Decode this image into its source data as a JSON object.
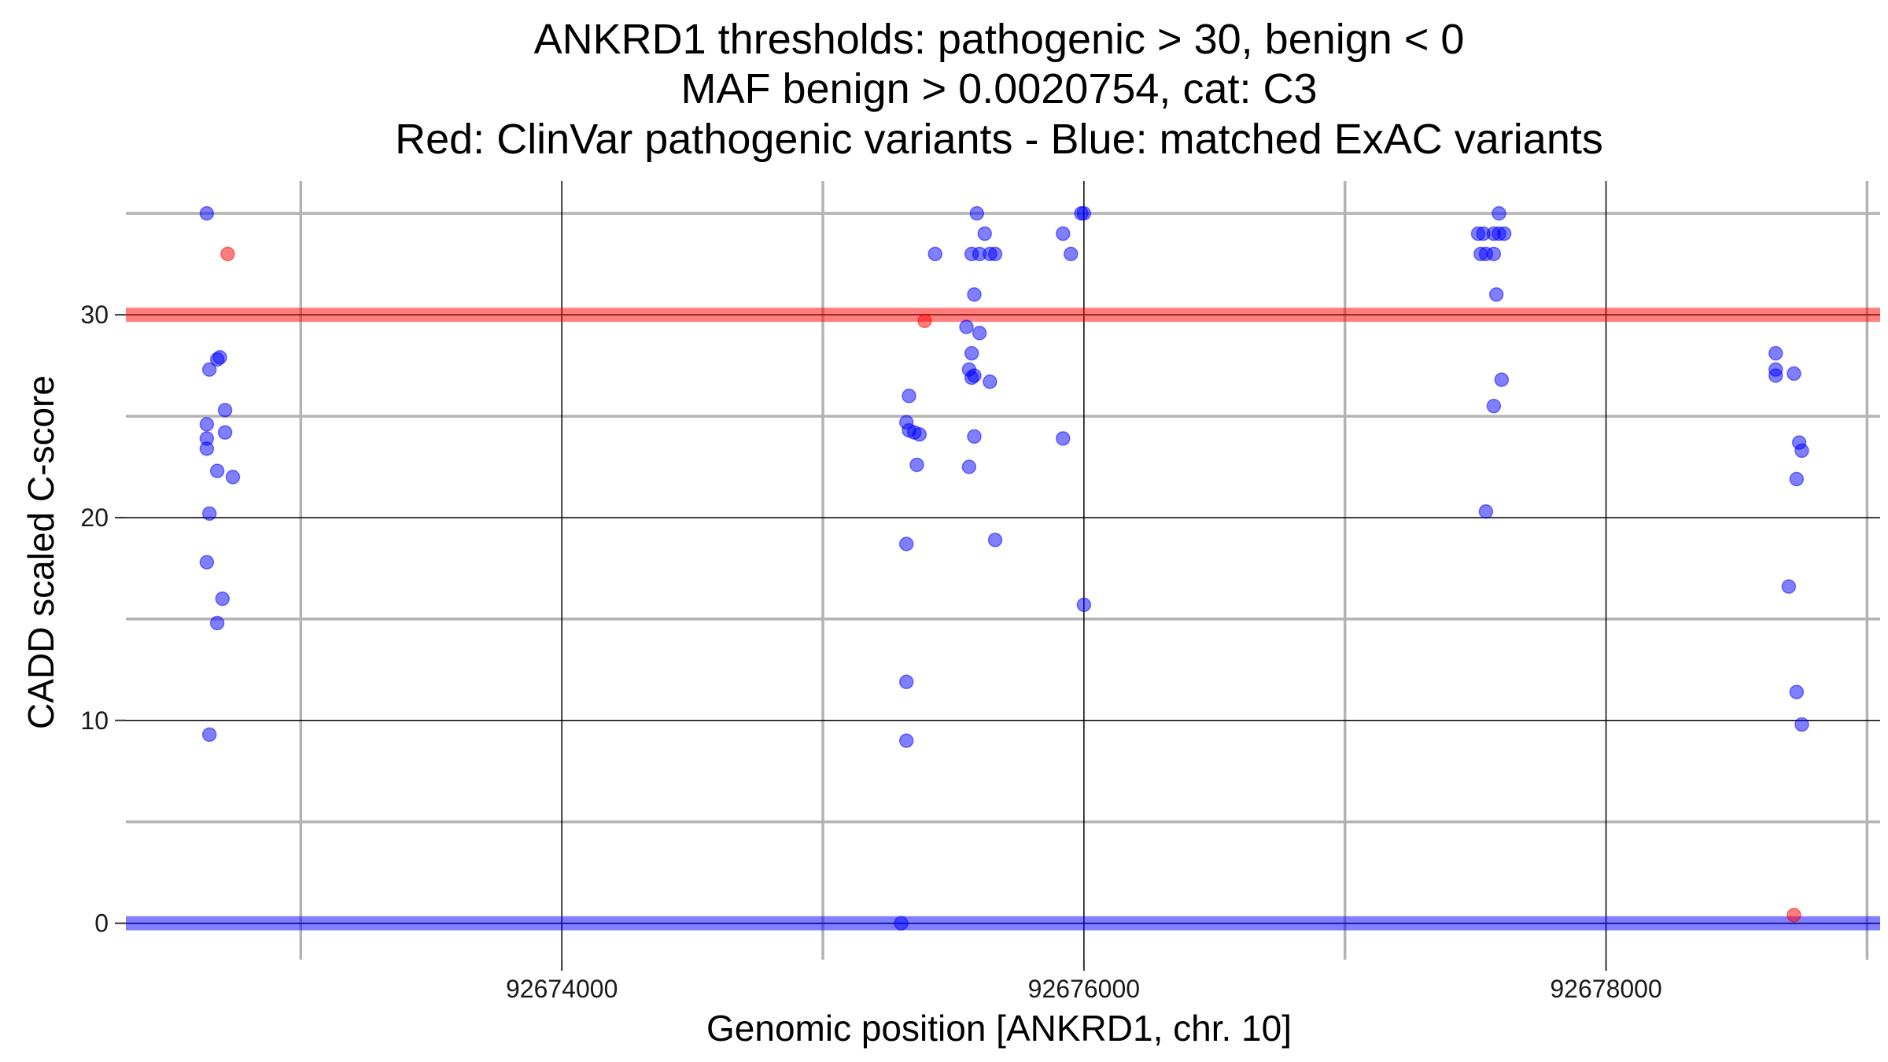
{
  "chart_data": {
    "type": "scatter",
    "title_lines": [
      "ANKRD1 thresholds: pathogenic > 30, benign < 0",
      "MAF benign > 0.0020754, cat: C3",
      "Red: ClinVar pathogenic variants - Blue: matched ExAC variants"
    ],
    "xlabel": "Genomic position [ANKRD1, chr. 10]",
    "ylabel": "CADD scaled C-score",
    "xlim": [
      92672330,
      92679050
    ],
    "ylim": [
      -1.8,
      36.6
    ],
    "x_major_ticks": [
      92674000,
      92676000,
      92678000
    ],
    "x_tick_labels": [
      "92674000",
      "92676000",
      "92678000"
    ],
    "x_minor_ticks": [
      92673000,
      92675000,
      92677000,
      92679000
    ],
    "y_major_ticks": [
      0,
      10,
      20,
      30
    ],
    "y_tick_labels": [
      "0",
      "10",
      "20",
      "30"
    ],
    "y_minor_ticks": [
      5,
      15,
      25,
      35
    ],
    "grid": true,
    "thresholds": {
      "pathogenic": 30,
      "benign": 0,
      "pathogenic_color": "#ff0000",
      "benign_color": "#0000ff"
    },
    "series": [
      {
        "name": "ClinVar pathogenic variants",
        "color": "#ff0000",
        "points": [
          [
            92672720,
            33
          ],
          [
            92675390,
            29.7
          ],
          [
            92678720,
            0.4
          ]
        ]
      },
      {
        "name": "matched ExAC variants",
        "color": "#0000ff",
        "points": [
          [
            92672640,
            35
          ],
          [
            92672650,
            27.3
          ],
          [
            92672680,
            27.8
          ],
          [
            92672690,
            27.9
          ],
          [
            92672640,
            24.6
          ],
          [
            92672640,
            23.9
          ],
          [
            92672640,
            23.4
          ],
          [
            92672710,
            25.3
          ],
          [
            92672710,
            24.2
          ],
          [
            92672680,
            22.3
          ],
          [
            92672740,
            22.0
          ],
          [
            92672650,
            20.2
          ],
          [
            92672640,
            17.8
          ],
          [
            92672700,
            16.0
          ],
          [
            92672680,
            14.8
          ],
          [
            92672650,
            9.3
          ],
          [
            92675430,
            33
          ],
          [
            92675330,
            26
          ],
          [
            92675320,
            24.7
          ],
          [
            92675330,
            24.3
          ],
          [
            92675350,
            24.2
          ],
          [
            92675370,
            24.1
          ],
          [
            92675360,
            22.6
          ],
          [
            92675320,
            18.7
          ],
          [
            92675320,
            11.9
          ],
          [
            92675320,
            9.0
          ],
          [
            92675300,
            0
          ],
          [
            92675590,
            35
          ],
          [
            92675620,
            34
          ],
          [
            92675570,
            33
          ],
          [
            92675600,
            33
          ],
          [
            92675640,
            33
          ],
          [
            92675660,
            33
          ],
          [
            92675580,
            31
          ],
          [
            92675550,
            29.4
          ],
          [
            92675600,
            29.1
          ],
          [
            92675570,
            28.1
          ],
          [
            92675560,
            27.3
          ],
          [
            92675580,
            27.0
          ],
          [
            92675570,
            26.9
          ],
          [
            92675640,
            26.7
          ],
          [
            92675580,
            24.0
          ],
          [
            92675560,
            22.5
          ],
          [
            92675660,
            18.9
          ],
          [
            92675990,
            35
          ],
          [
            92676000,
            35
          ],
          [
            92675920,
            34
          ],
          [
            92675950,
            33
          ],
          [
            92675920,
            23.9
          ],
          [
            92676000,
            15.7
          ],
          [
            92677590,
            35
          ],
          [
            92677510,
            34
          ],
          [
            92677530,
            34
          ],
          [
            92677570,
            34
          ],
          [
            92677590,
            34
          ],
          [
            92677610,
            34
          ],
          [
            92677520,
            33
          ],
          [
            92677540,
            33
          ],
          [
            92677570,
            33
          ],
          [
            92677580,
            31
          ],
          [
            92677600,
            26.8
          ],
          [
            92677570,
            25.5
          ],
          [
            92677540,
            20.3
          ],
          [
            92678650,
            28.1
          ],
          [
            92678650,
            27.3
          ],
          [
            92678650,
            27.0
          ],
          [
            92678720,
            27.1
          ],
          [
            92678740,
            23.7
          ],
          [
            92678750,
            23.3
          ],
          [
            92678730,
            21.9
          ],
          [
            92678700,
            16.6
          ],
          [
            92678730,
            11.4
          ],
          [
            92678750,
            9.8
          ]
        ]
      }
    ]
  }
}
